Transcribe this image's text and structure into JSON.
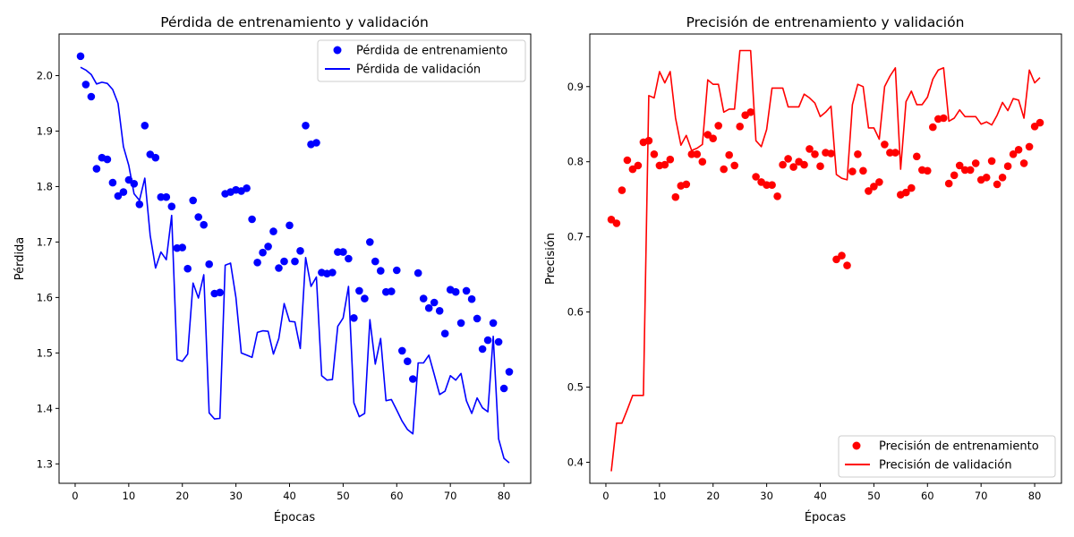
{
  "chart_data": [
    {
      "type": "scatter",
      "title": "Pérdida de entrenamiento y validación",
      "xlabel": "Épocas",
      "ylabel": "Pérdida",
      "xlim": [
        -3,
        85
      ],
      "ylim": [
        1.265,
        2.075
      ],
      "xticks": [
        0,
        10,
        20,
        30,
        40,
        50,
        60,
        70,
        80
      ],
      "yticks": [
        1.3,
        1.4,
        1.5,
        1.6,
        1.7,
        1.8,
        1.9,
        2.0
      ],
      "ytick_labels": [
        "1.3",
        "1.4",
        "1.5",
        "1.6",
        "1.7",
        "1.8",
        "1.9",
        "2.0"
      ],
      "grid": false,
      "legend_position": "top-right",
      "x": [
        1,
        2,
        3,
        4,
        5,
        6,
        7,
        8,
        9,
        10,
        11,
        12,
        13,
        14,
        15,
        16,
        17,
        18,
        19,
        20,
        21,
        22,
        23,
        24,
        25,
        26,
        27,
        28,
        29,
        30,
        31,
        32,
        33,
        34,
        35,
        36,
        37,
        38,
        39,
        40,
        41,
        42,
        43,
        44,
        45,
        46,
        47,
        48,
        49,
        50,
        51,
        52,
        53,
        54,
        55,
        56,
        57,
        58,
        59,
        60,
        61,
        62,
        63,
        64,
        65,
        66,
        67,
        68,
        69,
        70,
        71,
        72,
        73,
        74,
        75,
        76,
        77,
        78,
        79,
        80,
        81
      ],
      "series": [
        {
          "name": "Pérdida de entrenamiento",
          "kind": "scatter",
          "color": "#0000ff",
          "values": [
            2.035,
            1.984,
            1.962,
            1.832,
            1.852,
            1.849,
            1.807,
            1.783,
            1.79,
            1.812,
            1.805,
            1.768,
            1.91,
            1.858,
            1.852,
            1.781,
            1.781,
            1.764,
            1.689,
            1.69,
            1.652,
            1.775,
            1.745,
            1.731,
            1.66,
            1.607,
            1.609,
            1.787,
            1.79,
            1.794,
            1.792,
            1.797,
            1.741,
            1.663,
            1.681,
            1.692,
            1.719,
            1.653,
            1.665,
            1.73,
            1.665,
            1.684,
            1.91,
            1.876,
            1.879,
            1.645,
            1.643,
            1.645,
            1.682,
            1.682,
            1.67,
            1.563,
            1.612,
            1.598,
            1.7,
            1.665,
            1.648,
            1.61,
            1.611,
            1.649,
            1.504,
            1.485,
            1.453,
            1.644,
            1.598,
            1.581,
            1.591,
            1.576,
            1.535,
            1.614,
            1.61,
            1.554,
            1.612,
            1.597,
            1.562,
            1.507,
            1.523,
            1.554,
            1.52,
            1.436,
            1.466
          ]
        },
        {
          "name": "Pérdida de validación",
          "kind": "line",
          "color": "#0000ff",
          "values": [
            2.015,
            2.01,
            2.002,
            1.985,
            1.988,
            1.986,
            1.975,
            1.95,
            1.872,
            1.838,
            1.787,
            1.775,
            1.815,
            1.712,
            1.653,
            1.682,
            1.668,
            1.748,
            1.488,
            1.485,
            1.498,
            1.626,
            1.599,
            1.641,
            1.392,
            1.381,
            1.382,
            1.658,
            1.662,
            1.6,
            1.5,
            1.496,
            1.492,
            1.537,
            1.54,
            1.539,
            1.498,
            1.526,
            1.589,
            1.557,
            1.556,
            1.508,
            1.672,
            1.62,
            1.637,
            1.459,
            1.451,
            1.452,
            1.548,
            1.563,
            1.62,
            1.41,
            1.385,
            1.391,
            1.56,
            1.48,
            1.526,
            1.414,
            1.416,
            1.397,
            1.377,
            1.362,
            1.354,
            1.482,
            1.482,
            1.496,
            1.461,
            1.425,
            1.431,
            1.459,
            1.451,
            1.463,
            1.414,
            1.391,
            1.419,
            1.401,
            1.394,
            1.53,
            1.345,
            1.31,
            1.302
          ]
        }
      ]
    },
    {
      "type": "scatter",
      "title": "Precisión de entrenamiento y validación",
      "xlabel": "Épocas",
      "ylabel": "Precisión",
      "xlim": [
        -3,
        85
      ],
      "ylim": [
        0.372,
        0.97
      ],
      "xticks": [
        0,
        10,
        20,
        30,
        40,
        50,
        60,
        70,
        80
      ],
      "yticks": [
        0.4,
        0.5,
        0.6,
        0.7,
        0.8,
        0.9
      ],
      "ytick_labels": [
        "0.4",
        "0.5",
        "0.6",
        "0.7",
        "0.8",
        "0.9"
      ],
      "grid": false,
      "legend_position": "bottom-right",
      "x": [
        1,
        2,
        3,
        4,
        5,
        6,
        7,
        8,
        9,
        10,
        11,
        12,
        13,
        14,
        15,
        16,
        17,
        18,
        19,
        20,
        21,
        22,
        23,
        24,
        25,
        26,
        27,
        28,
        29,
        30,
        31,
        32,
        33,
        34,
        35,
        36,
        37,
        38,
        39,
        40,
        41,
        42,
        43,
        44,
        45,
        46,
        47,
        48,
        49,
        50,
        51,
        52,
        53,
        54,
        55,
        56,
        57,
        58,
        59,
        60,
        61,
        62,
        63,
        64,
        65,
        66,
        67,
        68,
        69,
        70,
        71,
        72,
        73,
        74,
        75,
        76,
        77,
        78,
        79,
        80,
        81
      ],
      "series": [
        {
          "name": "Precisión de entrenamiento",
          "kind": "scatter",
          "color": "#ff0000",
          "values": [
            0.723,
            0.718,
            0.762,
            0.802,
            0.79,
            0.795,
            0.826,
            0.828,
            0.81,
            0.795,
            0.796,
            0.803,
            0.753,
            0.768,
            0.77,
            0.81,
            0.81,
            0.8,
            0.836,
            0.831,
            0.848,
            0.79,
            0.809,
            0.795,
            0.847,
            0.862,
            0.866,
            0.78,
            0.773,
            0.769,
            0.769,
            0.754,
            0.796,
            0.804,
            0.793,
            0.8,
            0.796,
            0.817,
            0.81,
            0.794,
            0.812,
            0.811,
            0.67,
            0.675,
            0.662,
            0.787,
            0.81,
            0.788,
            0.761,
            0.767,
            0.773,
            0.823,
            0.812,
            0.812,
            0.756,
            0.759,
            0.765,
            0.807,
            0.789,
            0.788,
            0.846,
            0.857,
            0.858,
            0.771,
            0.782,
            0.795,
            0.789,
            0.789,
            0.798,
            0.776,
            0.779,
            0.801,
            0.77,
            0.779,
            0.794,
            0.81,
            0.816,
            0.798,
            0.82,
            0.847,
            0.852
          ]
        },
        {
          "name": "Precisión de validación",
          "kind": "line",
          "color": "#ff0000",
          "values": [
            0.388,
            0.452,
            0.452,
            0.47,
            0.489,
            0.489,
            0.489,
            0.888,
            0.885,
            0.92,
            0.905,
            0.92,
            0.858,
            0.822,
            0.835,
            0.815,
            0.818,
            0.823,
            0.909,
            0.903,
            0.903,
            0.866,
            0.87,
            0.87,
            0.948,
            0.948,
            0.948,
            0.828,
            0.82,
            0.843,
            0.898,
            0.898,
            0.898,
            0.873,
            0.873,
            0.873,
            0.89,
            0.885,
            0.878,
            0.86,
            0.866,
            0.874,
            0.783,
            0.778,
            0.776,
            0.876,
            0.903,
            0.9,
            0.845,
            0.845,
            0.83,
            0.9,
            0.914,
            0.925,
            0.79,
            0.88,
            0.894,
            0.876,
            0.876,
            0.886,
            0.91,
            0.922,
            0.925,
            0.854,
            0.858,
            0.869,
            0.86,
            0.86,
            0.86,
            0.85,
            0.853,
            0.849,
            0.862,
            0.879,
            0.868,
            0.884,
            0.882,
            0.858,
            0.922,
            0.905,
            0.912
          ]
        }
      ]
    }
  ]
}
